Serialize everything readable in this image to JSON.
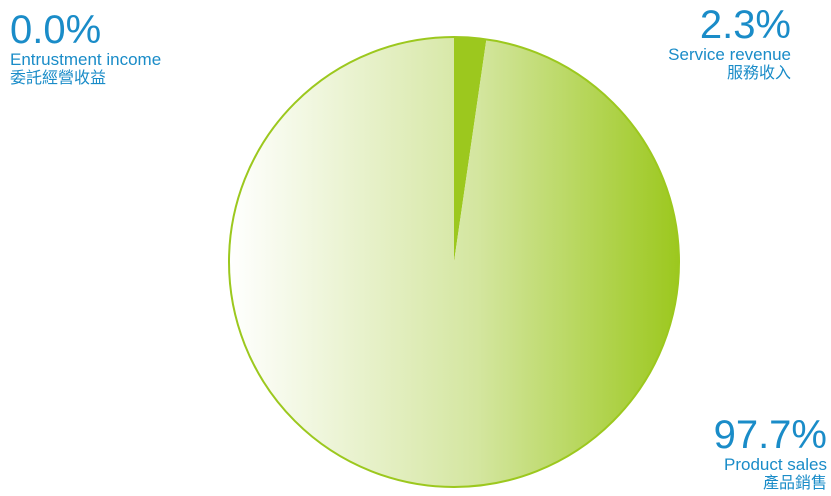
{
  "chart_data": {
    "type": "pie",
    "title": "",
    "slices": [
      {
        "name_en": "Entrustment income",
        "name_zh": "委託經營收益",
        "value": 0.0,
        "label": "0.0%"
      },
      {
        "name_en": "Service revenue",
        "name_zh": "服務收入",
        "value": 2.3,
        "label": "2.3%"
      },
      {
        "name_en": "Product sales",
        "name_zh": "產品銷售",
        "value": 97.7,
        "label": "97.7%"
      }
    ]
  },
  "colors": {
    "label_text": "#1a8cc8",
    "pie_outline": "#9cc81e",
    "service_slice": "#9cc81e",
    "product_gradient_start": "#ffffff",
    "product_gradient_end": "#9cc81e"
  }
}
